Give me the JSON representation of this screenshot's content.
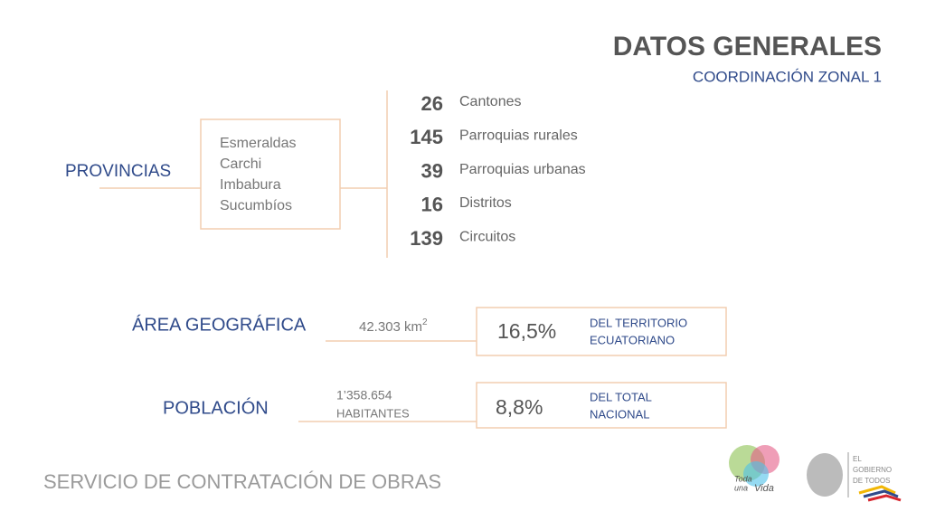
{
  "header": {
    "title": "DATOS GENERALES",
    "subtitle": "COORDINACIÓN ZONAL 1"
  },
  "provinces": {
    "label": "PROVINCIAS",
    "items": [
      "Esmeraldas",
      "Carchi",
      "Imbabura",
      "Sucumbíos"
    ]
  },
  "counts": [
    {
      "value": 26,
      "label": "Cantones"
    },
    {
      "value": 145,
      "label": "Parroquias rurales"
    },
    {
      "value": 39,
      "label": "Parroquias urbanas"
    },
    {
      "value": 16,
      "label": "Distritos"
    },
    {
      "value": 139,
      "label": "Circuitos"
    }
  ],
  "area": {
    "label": "ÁREA GEOGRÁFICA",
    "amount": "42.303 km",
    "amount_sup": "2",
    "share": "16,5%",
    "share_note": [
      "DEL TERRITORIO",
      "ECUATORIANO"
    ]
  },
  "population": {
    "label": "POBLACIÓN",
    "amount": [
      "1’358.654",
      "HABITANTES"
    ],
    "share": "8,8%",
    "share_note": [
      "DEL TOTAL",
      "NACIONAL"
    ]
  },
  "footer": {
    "org": "SERVICIO DE CONTRATACIÓN DE OBRAS",
    "logo_left": [
      "Toda",
      "una",
      "Vida"
    ],
    "logo_right": [
      "EL",
      "GOBIERNO",
      "DE TODOS"
    ]
  }
}
